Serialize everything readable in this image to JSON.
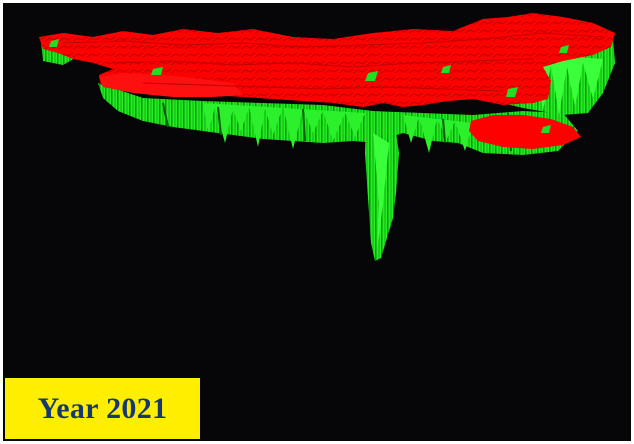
{
  "year_label": "Year 2021",
  "colors": {
    "background": "#060608",
    "frame": "#ffffff",
    "top_surface": "#ff0000",
    "side_wall": "#22ee22",
    "side_wall_dark": "#0a7a0a",
    "label_bg": "#ffee00",
    "label_text": "#16386e"
  }
}
